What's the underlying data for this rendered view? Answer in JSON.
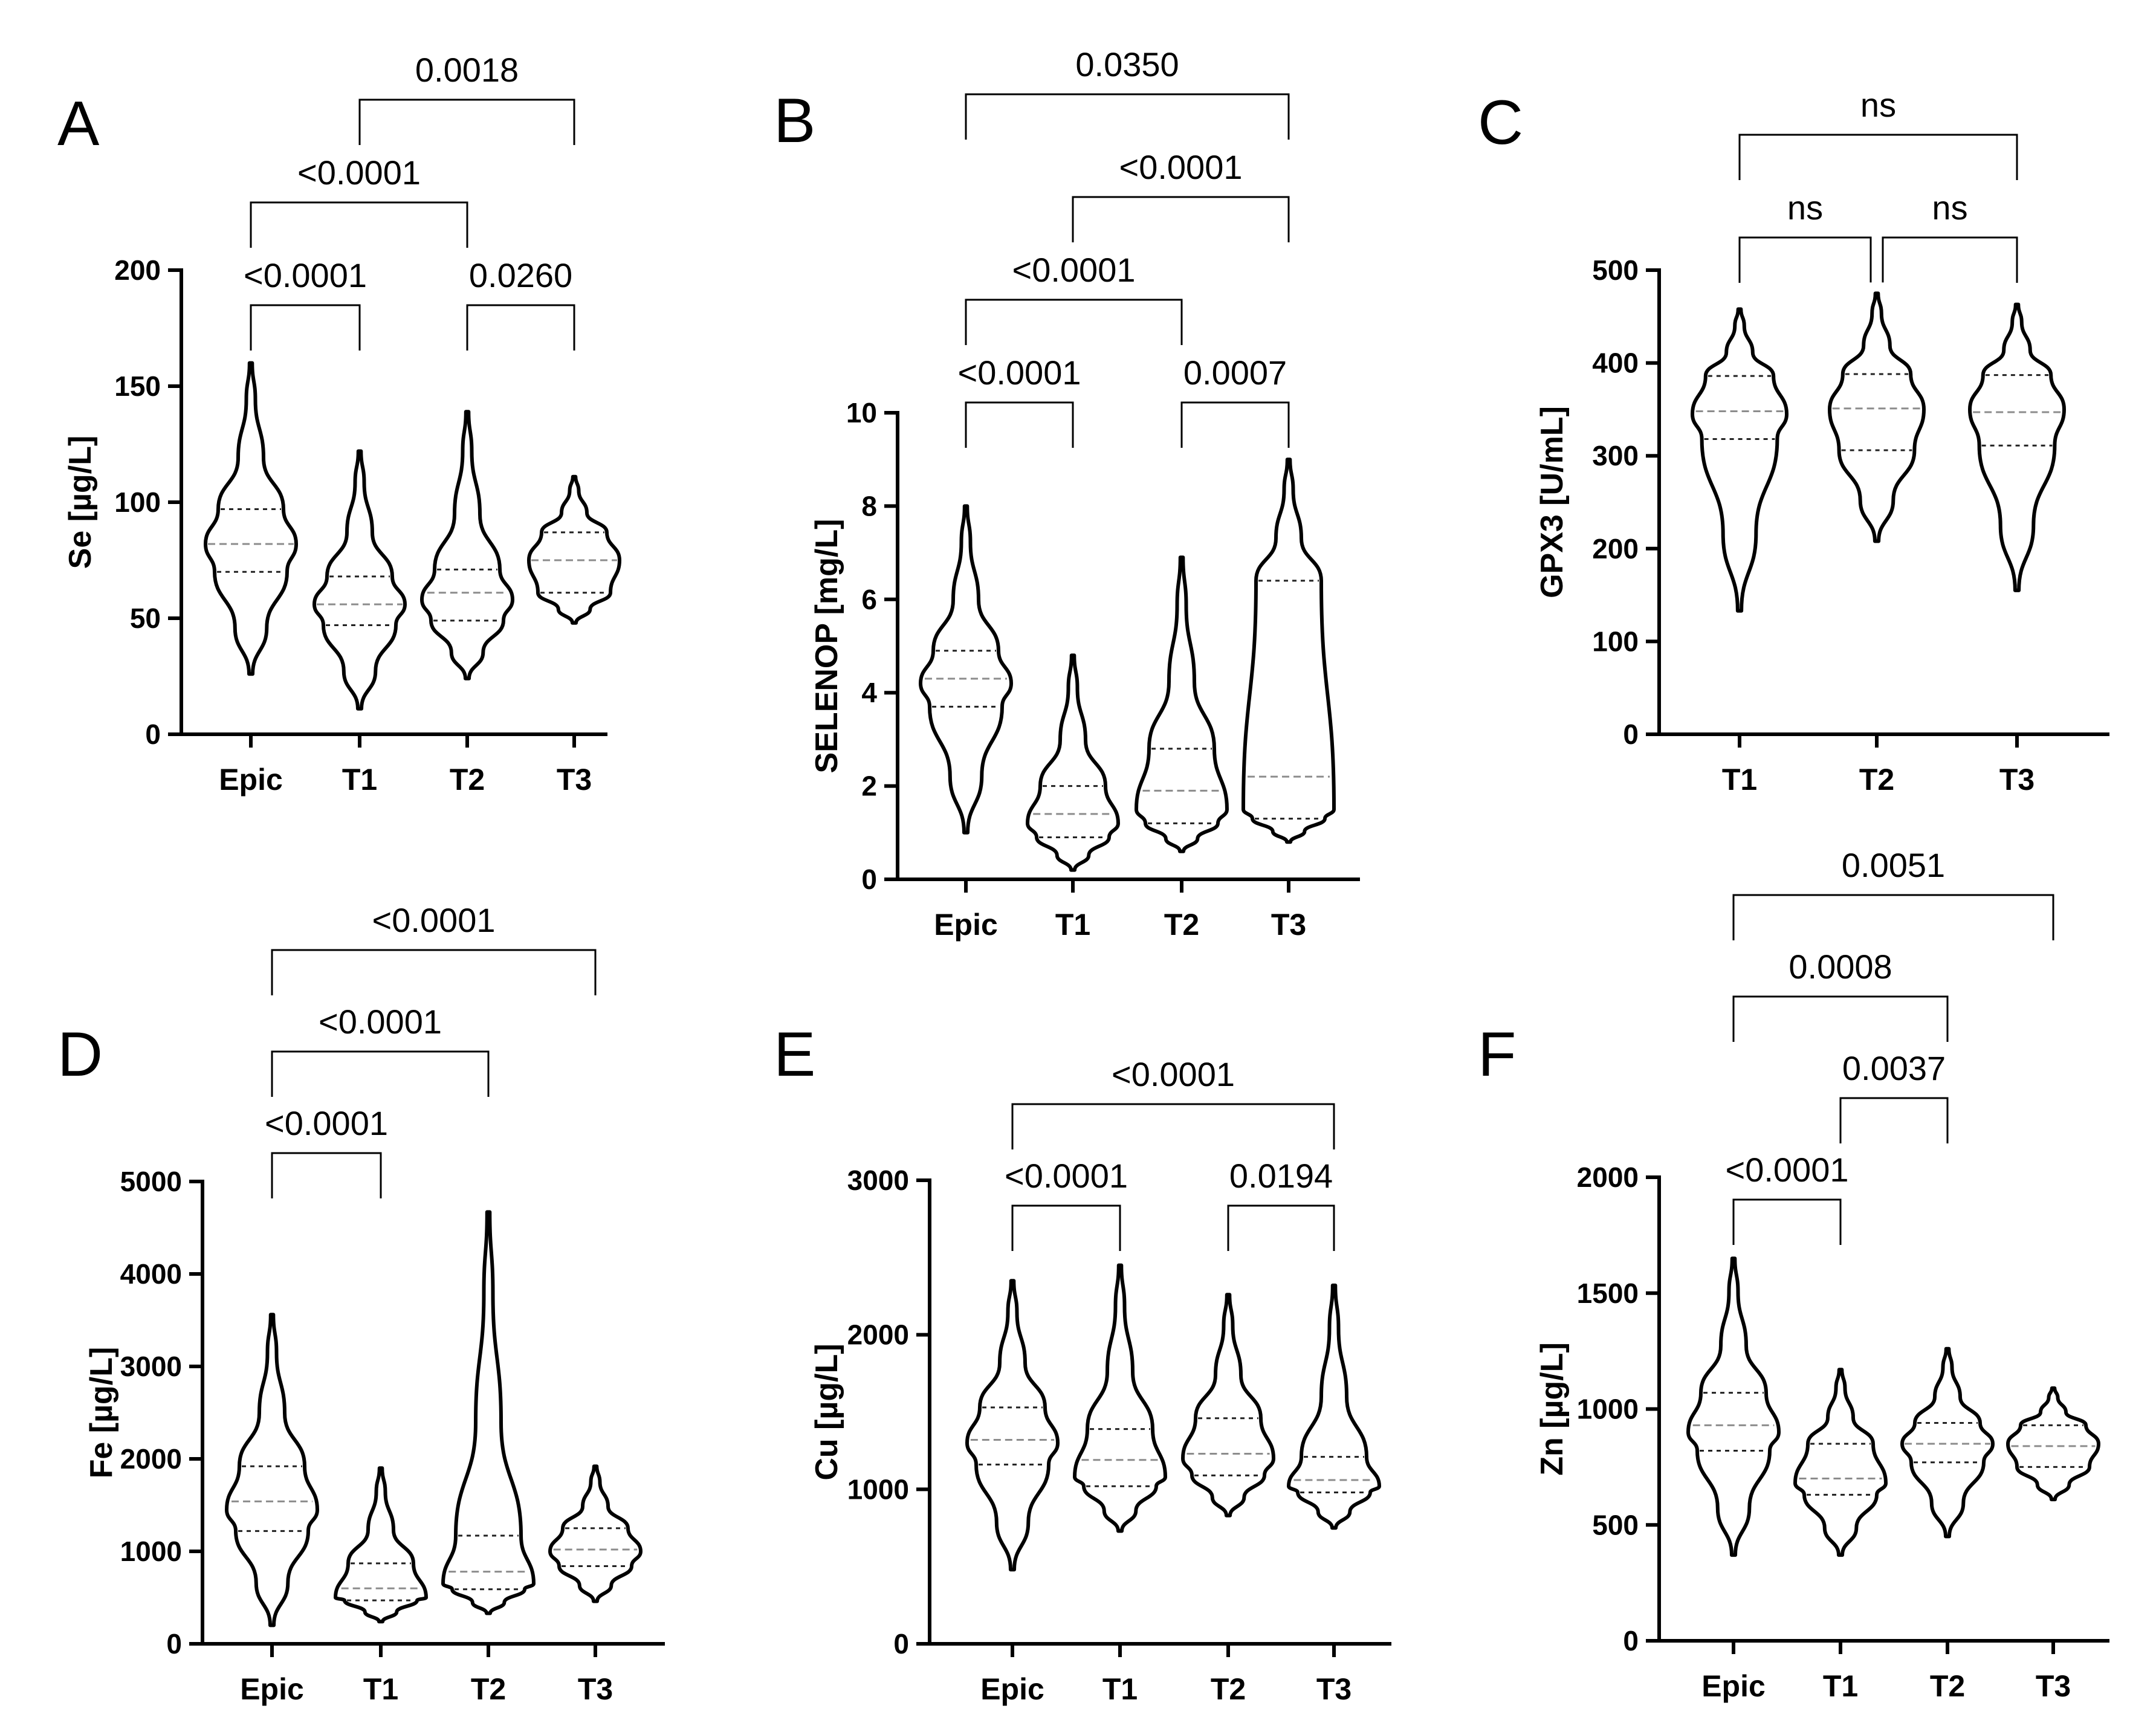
{
  "chart_data": [
    {
      "panel": "A",
      "type": "violin",
      "ylabel": "Se [µg/L]",
      "ylim": [
        0,
        200
      ],
      "yticks": [
        0,
        50,
        100,
        150,
        200
      ],
      "categories": [
        "Epic",
        "T1",
        "T2",
        "T3"
      ],
      "violins": [
        {
          "min": 26,
          "q1": 70,
          "median": 82,
          "q3": 97,
          "max": 160,
          "mode": 82
        },
        {
          "min": 11,
          "q1": 47,
          "median": 56,
          "q3": 68,
          "max": 122,
          "mode": 56
        },
        {
          "min": 24,
          "q1": 49,
          "median": 61,
          "q3": 71,
          "max": 139,
          "mode": 58
        },
        {
          "min": 48,
          "q1": 61,
          "median": 75,
          "q3": 87,
          "max": 111,
          "mode": 75
        }
      ],
      "comparisons": [
        {
          "from": 0,
          "to": 1,
          "label": "<0.0001"
        },
        {
          "from": 2,
          "to": 3,
          "label": "0.0260"
        },
        {
          "from": 0,
          "to": 2,
          "label": "<0.0001"
        },
        {
          "from": 1,
          "to": 3,
          "label": "0.0018"
        }
      ]
    },
    {
      "panel": "B",
      "type": "violin",
      "ylabel": "SELENOP [mg/L]",
      "ylim": [
        0,
        10
      ],
      "yticks": [
        0,
        2,
        4,
        6,
        8,
        10
      ],
      "categories": [
        "Epic",
        "T1",
        "T2",
        "T3"
      ],
      "violins": [
        {
          "min": 1.0,
          "q1": 3.7,
          "median": 4.3,
          "q3": 4.9,
          "max": 8.0,
          "mode": 4.2
        },
        {
          "min": 0.2,
          "q1": 0.9,
          "median": 1.4,
          "q3": 2.0,
          "max": 4.8,
          "mode": 1.2
        },
        {
          "min": 0.6,
          "q1": 1.2,
          "median": 1.9,
          "q3": 2.8,
          "max": 6.9,
          "mode": 1.5
        },
        {
          "min": 0.8,
          "q1": 1.3,
          "median": 2.2,
          "q3": 6.4,
          "max": 9.0,
          "mode": 1.5
        }
      ],
      "comparisons": [
        {
          "from": 0,
          "to": 1,
          "label": "<0.0001"
        },
        {
          "from": 2,
          "to": 3,
          "label": "0.0007"
        },
        {
          "from": 0,
          "to": 2,
          "label": "<0.0001"
        },
        {
          "from": 1,
          "to": 3,
          "label": "<0.0001"
        },
        {
          "from": 0,
          "to": 3,
          "label": "0.0350"
        }
      ]
    },
    {
      "panel": "C",
      "type": "violin",
      "ylabel": "GPX3 [U/mL]",
      "ylim": [
        0,
        500
      ],
      "yticks": [
        0,
        100,
        200,
        300,
        400,
        500
      ],
      "categories": [
        "T1",
        "T2",
        "T3"
      ],
      "violins": [
        {
          "min": 133,
          "q1": 318,
          "median": 348,
          "q3": 386,
          "max": 458,
          "mode": 345
        },
        {
          "min": 208,
          "q1": 306,
          "median": 351,
          "q3": 388,
          "max": 475,
          "mode": 350
        },
        {
          "min": 155,
          "q1": 311,
          "median": 347,
          "q3": 387,
          "max": 463,
          "mode": 350
        }
      ],
      "comparisons": [
        {
          "from": 0,
          "to": 1,
          "label": "ns"
        },
        {
          "from": 1,
          "to": 2,
          "label": "ns"
        },
        {
          "from": 0,
          "to": 2,
          "label": "ns"
        }
      ]
    },
    {
      "panel": "D",
      "type": "violin",
      "ylabel": "Fe [µg/L]",
      "ylim": [
        0,
        5000
      ],
      "yticks": [
        0,
        1000,
        2000,
        3000,
        4000,
        5000
      ],
      "categories": [
        "Epic",
        "T1",
        "T2",
        "T3"
      ],
      "violins": [
        {
          "min": 200,
          "q1": 1220,
          "median": 1540,
          "q3": 1920,
          "max": 3560,
          "mode": 1450
        },
        {
          "min": 240,
          "q1": 470,
          "median": 600,
          "q3": 870,
          "max": 1900,
          "mode": 500
        },
        {
          "min": 330,
          "q1": 590,
          "median": 780,
          "q3": 1170,
          "max": 4670,
          "mode": 650
        },
        {
          "min": 460,
          "q1": 840,
          "median": 1020,
          "q3": 1250,
          "max": 1920,
          "mode": 1000
        }
      ],
      "comparisons": [
        {
          "from": 0,
          "to": 1,
          "label": "<0.0001"
        },
        {
          "from": 0,
          "to": 2,
          "label": "<0.0001"
        },
        {
          "from": 0,
          "to": 3,
          "label": "<0.0001"
        }
      ]
    },
    {
      "panel": "E",
      "type": "violin",
      "ylabel": "Cu [µg/L]",
      "ylim": [
        0,
        3000
      ],
      "yticks": [
        0,
        1000,
        2000,
        3000
      ],
      "categories": [
        "Epic",
        "T1",
        "T2",
        "T3"
      ],
      "violins": [
        {
          "min": 480,
          "q1": 1160,
          "median": 1320,
          "q3": 1530,
          "max": 2350,
          "mode": 1300
        },
        {
          "min": 730,
          "q1": 1020,
          "median": 1190,
          "q3": 1390,
          "max": 2450,
          "mode": 1080
        },
        {
          "min": 830,
          "q1": 1090,
          "median": 1230,
          "q3": 1460,
          "max": 2260,
          "mode": 1200
        },
        {
          "min": 750,
          "q1": 980,
          "median": 1060,
          "q3": 1210,
          "max": 2320,
          "mode": 1020
        }
      ],
      "comparisons": [
        {
          "from": 0,
          "to": 1,
          "label": "<0.0001"
        },
        {
          "from": 2,
          "to": 3,
          "label": "0.0194"
        },
        {
          "from": 0,
          "to": 3,
          "label": "<0.0001"
        }
      ]
    },
    {
      "panel": "F",
      "type": "violin",
      "ylabel": "Zn [µg/L]",
      "ylim": [
        0,
        2000
      ],
      "yticks": [
        0,
        500,
        1000,
        1500,
        2000
      ],
      "categories": [
        "Epic",
        "T1",
        "T2",
        "T3"
      ],
      "violins": [
        {
          "min": 370,
          "q1": 820,
          "median": 930,
          "q3": 1070,
          "max": 1650,
          "mode": 900
        },
        {
          "min": 370,
          "q1": 630,
          "median": 700,
          "q3": 850,
          "max": 1170,
          "mode": 680
        },
        {
          "min": 450,
          "q1": 770,
          "median": 850,
          "q3": 940,
          "max": 1260,
          "mode": 850
        },
        {
          "min": 610,
          "q1": 750,
          "median": 840,
          "q3": 930,
          "max": 1090,
          "mode": 850
        }
      ],
      "comparisons": [
        {
          "from": 0,
          "to": 1,
          "label": "<0.0001"
        },
        {
          "from": 1,
          "to": 2,
          "label": "0.0037"
        },
        {
          "from": 0,
          "to": 2,
          "label": "0.0008"
        },
        {
          "from": 0,
          "to": 3,
          "label": "0.0051"
        }
      ]
    }
  ]
}
